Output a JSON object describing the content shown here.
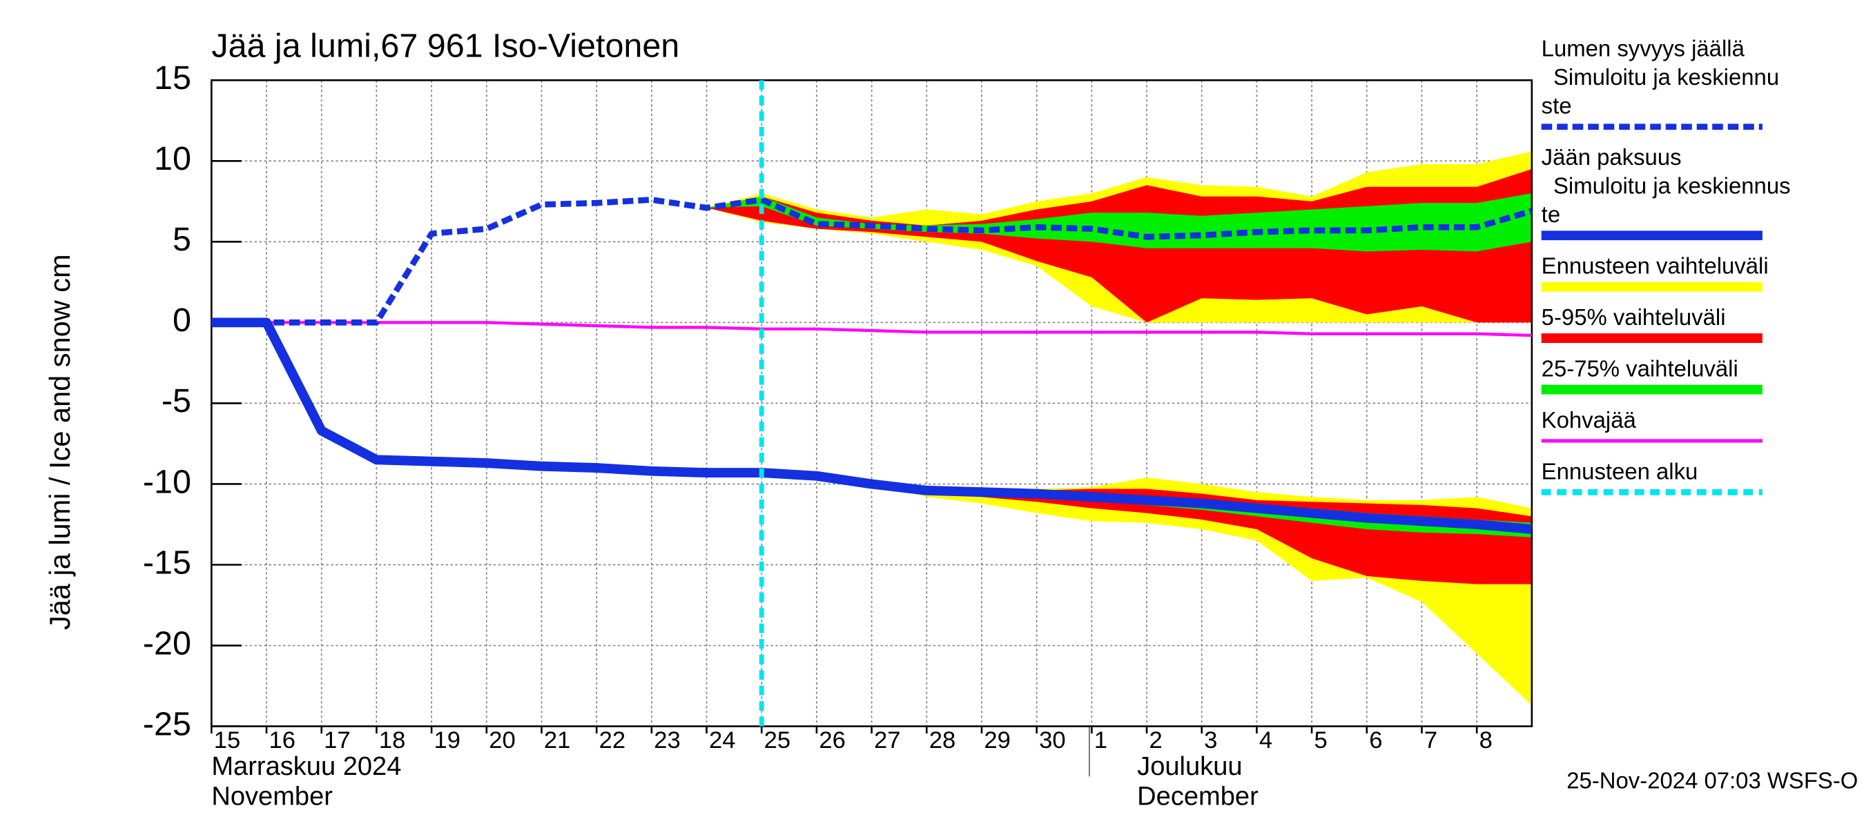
{
  "chart_data": {
    "type": "line",
    "title": "Jää ja lumi,67 961 Iso-Vietonen",
    "y_label": "Jää ja lumi / Ice and snow    cm",
    "x": [
      "2024-11-15",
      "2024-11-16",
      "2024-11-17",
      "2024-11-18",
      "2024-11-19",
      "2024-11-20",
      "2024-11-21",
      "2024-11-22",
      "2024-11-23",
      "2024-11-24",
      "2024-11-25",
      "2024-11-26",
      "2024-11-27",
      "2024-11-28",
      "2024-11-29",
      "2024-11-30",
      "2024-12-01",
      "2024-12-02",
      "2024-12-03",
      "2024-12-04",
      "2024-12-05",
      "2024-12-06",
      "2024-12-07",
      "2024-12-08",
      "2024-12-09"
    ],
    "xlim": [
      "2024-11-15",
      "2024-12-09"
    ],
    "xticks": [
      {
        "value": "2024-11-15",
        "label": "15"
      },
      {
        "value": "2024-11-16",
        "label": "16"
      },
      {
        "value": "2024-11-17",
        "label": "17"
      },
      {
        "value": "2024-11-18",
        "label": "18"
      },
      {
        "value": "2024-11-19",
        "label": "19"
      },
      {
        "value": "2024-11-20",
        "label": "20"
      },
      {
        "value": "2024-11-21",
        "label": "21"
      },
      {
        "value": "2024-11-22",
        "label": "22"
      },
      {
        "value": "2024-11-23",
        "label": "23"
      },
      {
        "value": "2024-11-24",
        "label": "24"
      },
      {
        "value": "2024-11-25",
        "label": "25"
      },
      {
        "value": "2024-11-26",
        "label": "26"
      },
      {
        "value": "2024-11-27",
        "label": "27"
      },
      {
        "value": "2024-11-28",
        "label": "28"
      },
      {
        "value": "2024-11-29",
        "label": "29"
      },
      {
        "value": "2024-11-30",
        "label": "30"
      },
      {
        "value": "2024-12-01",
        "label": "1"
      },
      {
        "value": "2024-12-02",
        "label": "2"
      },
      {
        "value": "2024-12-03",
        "label": "3"
      },
      {
        "value": "2024-12-04",
        "label": "4"
      },
      {
        "value": "2024-12-05",
        "label": "5"
      },
      {
        "value": "2024-12-06",
        "label": "6"
      },
      {
        "value": "2024-12-07",
        "label": "7"
      },
      {
        "value": "2024-12-08",
        "label": "8"
      }
    ],
    "month_labels": [
      [
        "Marraskuu 2024",
        "November"
      ],
      [
        "Joulukuu",
        "December"
      ]
    ],
    "ylim": [
      -25,
      15
    ],
    "yticks": [
      -25,
      -20,
      -15,
      -10,
      -5,
      0,
      5,
      10,
      15
    ],
    "grid": true,
    "series": [
      {
        "name": [
          "Lumen syvyys jäällä",
          "Simuloitu ja keskiennu",
          "ste"
        ],
        "color": "#1430e0",
        "style": "dashed",
        "values": [
          0,
          0,
          0,
          0,
          5.5,
          5.8,
          7.3,
          7.4,
          7.6,
          7.1,
          7.6,
          6.1,
          6.0,
          5.8,
          5.7,
          5.9,
          5.8,
          5.3,
          5.4,
          5.6,
          5.7,
          5.7,
          5.9,
          5.9,
          6.9
        ]
      },
      {
        "name": [
          "Jään paksuus",
          "Simuloitu ja keskiennus",
          "te"
        ],
        "color": "#1430e0",
        "style": "solid",
        "values": [
          0,
          0,
          -6.7,
          -8.5,
          -8.6,
          -8.7,
          -8.9,
          -9.0,
          -9.2,
          -9.3,
          -9.3,
          -9.5,
          -10.0,
          -10.4,
          -10.5,
          -10.6,
          -10.8,
          -11.0,
          -11.2,
          -11.5,
          -11.8,
          -12.1,
          -12.3,
          -12.5,
          -12.8
        ]
      },
      {
        "name": [
          "Kohvajää"
        ],
        "color": "#ff00ff",
        "style": "thin",
        "values": [
          0,
          0,
          0,
          0,
          0,
          0,
          -0.1,
          -0.2,
          -0.3,
          -0.3,
          -0.4,
          -0.4,
          -0.5,
          -0.6,
          -0.6,
          -0.6,
          -0.6,
          -0.6,
          -0.6,
          -0.6,
          -0.7,
          -0.7,
          -0.7,
          -0.7,
          -0.8
        ]
      }
    ],
    "bands": [
      {
        "name": [
          "Ennusteen vaihteluväli"
        ],
        "color": "#ffff00",
        "snow_low": [
          null,
          null,
          null,
          null,
          null,
          null,
          null,
          null,
          null,
          7.1,
          6.2,
          5.8,
          5.5,
          5.0,
          4.5,
          3.5,
          1.0,
          0,
          0,
          0,
          0,
          0,
          0,
          0,
          0
        ],
        "snow_high": [
          null,
          null,
          null,
          null,
          null,
          null,
          null,
          null,
          null,
          7.1,
          8.0,
          7.0,
          6.5,
          7.0,
          6.7,
          7.5,
          8.0,
          9.0,
          8.5,
          8.4,
          7.8,
          9.3,
          9.8,
          9.8,
          10.6
        ],
        "ice_low": [
          null,
          null,
          null,
          null,
          null,
          null,
          null,
          null,
          null,
          null,
          null,
          null,
          -10,
          -10.8,
          -11.2,
          -11.8,
          -12.3,
          -12.4,
          -12.8,
          -13.5,
          -16.0,
          -15.8,
          -17.3,
          -20.5,
          -23.7
        ],
        "ice_high": [
          null,
          null,
          null,
          null,
          null,
          null,
          null,
          null,
          null,
          null,
          null,
          null,
          -10,
          -10.2,
          -10.3,
          -10.3,
          -10.2,
          -9.6,
          -10.0,
          -10.5,
          -10.8,
          -11.0,
          -11.0,
          -10.8,
          -11.5
        ]
      },
      {
        "name": [
          "5-95% vaihteluväli"
        ],
        "color": "#ff0000",
        "snow_low": [
          null,
          null,
          null,
          null,
          null,
          null,
          null,
          null,
          null,
          7.1,
          6.3,
          5.8,
          5.6,
          5.3,
          5.0,
          3.8,
          2.8,
          0,
          1.5,
          1.4,
          1.5,
          0.5,
          1.0,
          0,
          0
        ],
        "snow_high": [
          null,
          null,
          null,
          null,
          null,
          null,
          null,
          null,
          null,
          7.1,
          7.8,
          6.8,
          6.3,
          6.0,
          6.3,
          7.0,
          7.5,
          8.5,
          7.8,
          7.8,
          7.5,
          8.4,
          8.4,
          8.4,
          9.5
        ],
        "ice_low": [
          null,
          null,
          null,
          null,
          null,
          null,
          null,
          null,
          null,
          null,
          null,
          null,
          -10,
          -10.5,
          -10.8,
          -11.1,
          -11.5,
          -11.8,
          -12.2,
          -12.8,
          -14.6,
          -15.7,
          -16.0,
          -16.2,
          -16.2
        ],
        "ice_high": [
          null,
          null,
          null,
          null,
          null,
          null,
          null,
          null,
          null,
          null,
          null,
          null,
          -10,
          -10.3,
          -10.4,
          -10.4,
          -10.3,
          -10.3,
          -10.6,
          -11.0,
          -11.1,
          -11.2,
          -11.3,
          -11.5,
          -12.0
        ]
      },
      {
        "name": [
          "25-75% vaihteluväli"
        ],
        "color": "#00ee00",
        "snow_low": [
          null,
          null,
          null,
          null,
          null,
          null,
          null,
          null,
          null,
          7.1,
          7.2,
          6.0,
          5.8,
          5.6,
          5.5,
          5.2,
          5.0,
          4.6,
          4.6,
          4.6,
          4.6,
          4.4,
          4.5,
          4.4,
          5.0
        ],
        "snow_high": [
          null,
          null,
          null,
          null,
          null,
          null,
          null,
          null,
          null,
          7.1,
          7.8,
          6.5,
          6.1,
          6.0,
          6.1,
          6.4,
          6.8,
          6.8,
          6.6,
          6.8,
          7.0,
          7.2,
          7.4,
          7.4,
          8.0
        ],
        "ice_low": [
          null,
          null,
          null,
          null,
          null,
          null,
          null,
          null,
          null,
          null,
          null,
          null,
          null,
          null,
          null,
          -10.7,
          -11.0,
          -11.3,
          -11.6,
          -12.0,
          -12.4,
          -12.8,
          -13.0,
          -13.1,
          -13.3
        ],
        "ice_high": [
          null,
          null,
          null,
          null,
          null,
          null,
          null,
          null,
          null,
          null,
          null,
          null,
          null,
          null,
          null,
          -10.6,
          -10.7,
          -10.9,
          -11.1,
          -11.3,
          -11.5,
          -11.8,
          -12.0,
          -12.2,
          -12.4
        ]
      }
    ],
    "forecast_start": {
      "name": [
        "Ennusteen alku"
      ],
      "color": "#00e5ee",
      "x": "2024-11-25"
    },
    "footer": "25-Nov-2024 07:03 WSFS-O"
  }
}
